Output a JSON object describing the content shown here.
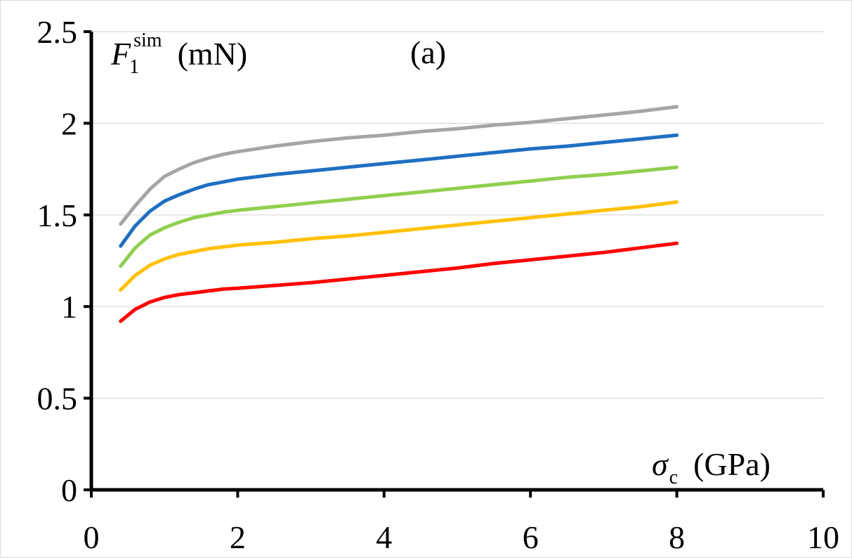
{
  "chart_data": {
    "type": "line",
    "title": "",
    "panel_label": "(a)",
    "xlabel": {
      "symbol": "σ",
      "subscript": "c",
      "unit": "(GPa)"
    },
    "ylabel": {
      "symbol": "F",
      "subscript": "1",
      "superscript": "sim",
      "unit": "(mN)"
    },
    "xlim": [
      0,
      10
    ],
    "ylim": [
      0,
      2.5
    ],
    "xticks": [
      0,
      2,
      4,
      6,
      8,
      10
    ],
    "yticks": [
      0,
      0.5,
      1,
      1.5,
      2,
      2.5
    ],
    "xtick_labels": [
      "0",
      "2",
      "4",
      "6",
      "8",
      "10"
    ],
    "ytick_labels": [
      "0",
      "0.5",
      "1",
      "1.5",
      "2",
      "2.5"
    ],
    "grid": "horizontal",
    "legend": "none",
    "x": [
      0.4,
      0.6,
      0.8,
      1.0,
      1.2,
      1.4,
      1.6,
      1.8,
      2.0,
      2.5,
      3,
      3.5,
      4,
      4.5,
      5,
      5.5,
      6,
      6.5,
      7,
      7.5,
      8
    ],
    "series": [
      {
        "color": "#a5a5a5",
        "values": [
          1.45,
          1.55,
          1.64,
          1.71,
          1.75,
          1.785,
          1.81,
          1.83,
          1.845,
          1.875,
          1.9,
          1.92,
          1.935,
          1.955,
          1.97,
          1.99,
          2.005,
          2.025,
          2.045,
          2.065,
          2.09
        ]
      },
      {
        "color": "#1f6fc1",
        "values": [
          1.33,
          1.44,
          1.52,
          1.575,
          1.61,
          1.64,
          1.665,
          1.68,
          1.695,
          1.72,
          1.74,
          1.76,
          1.78,
          1.8,
          1.82,
          1.84,
          1.86,
          1.875,
          1.895,
          1.915,
          1.935
        ]
      },
      {
        "color": "#8fcf4f",
        "values": [
          1.22,
          1.32,
          1.39,
          1.43,
          1.46,
          1.485,
          1.5,
          1.515,
          1.525,
          1.545,
          1.565,
          1.585,
          1.605,
          1.625,
          1.645,
          1.665,
          1.685,
          1.705,
          1.72,
          1.74,
          1.76
        ]
      },
      {
        "color": "#ffc000",
        "values": [
          1.09,
          1.17,
          1.225,
          1.26,
          1.285,
          1.3,
          1.315,
          1.325,
          1.335,
          1.35,
          1.37,
          1.385,
          1.405,
          1.425,
          1.445,
          1.465,
          1.485,
          1.505,
          1.525,
          1.545,
          1.57
        ]
      },
      {
        "color": "#ff0000",
        "values": [
          0.92,
          0.985,
          1.025,
          1.05,
          1.065,
          1.075,
          1.085,
          1.095,
          1.1,
          1.115,
          1.13,
          1.15,
          1.17,
          1.19,
          1.21,
          1.235,
          1.255,
          1.275,
          1.295,
          1.32,
          1.345
        ]
      }
    ]
  }
}
